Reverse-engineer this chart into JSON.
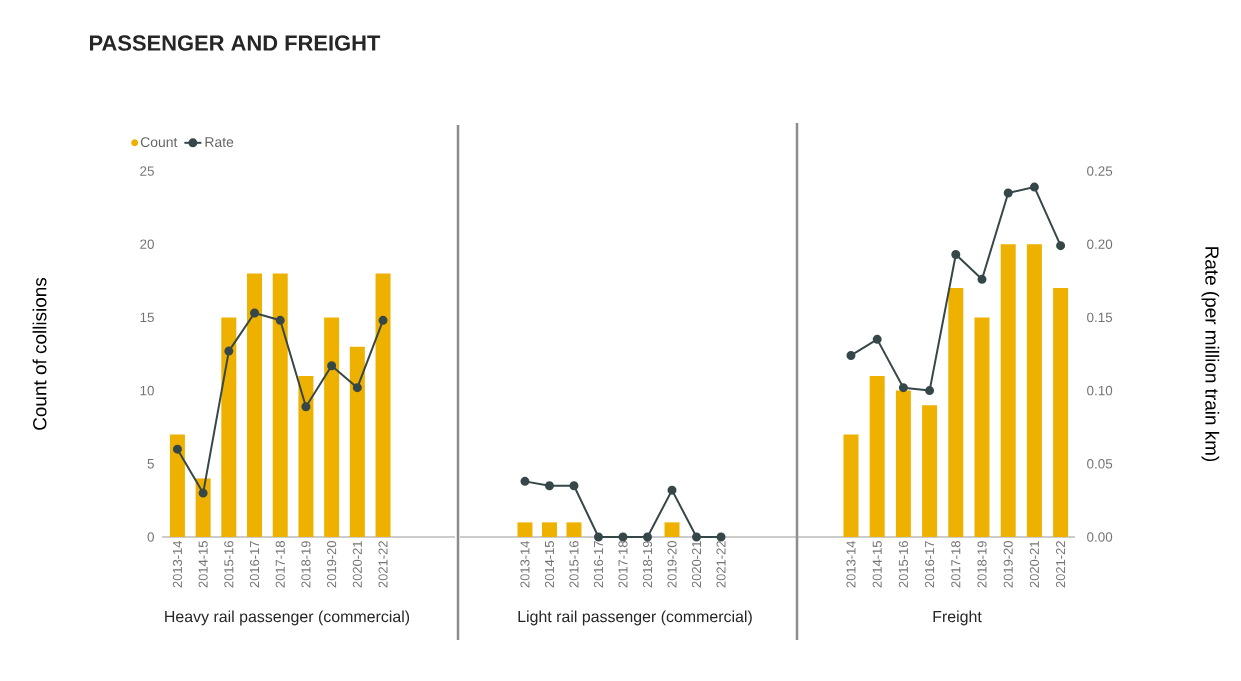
{
  "chart_data": [
    {
      "type": "bar",
      "title": "PASSENGER AND FREIGHT",
      "xlabel": "Heavy rail passenger (commercial)",
      "ylabel": "Count of collisions",
      "categories": [
        "2013-14",
        "2014-15",
        "2015-16",
        "2016-17",
        "2017-18",
        "2018-19",
        "2019-20",
        "2020-21",
        "2021-22"
      ],
      "series": [
        {
          "name": "Count",
          "color": "#efb100",
          "values": [
            7,
            4,
            15,
            18,
            18,
            11,
            15,
            13,
            18
          ]
        },
        {
          "name": "Rate",
          "type": "line",
          "axis": "y2",
          "color": "#36474a",
          "marker": "circle",
          "values": [
            0.06,
            0.03,
            0.127,
            0.153,
            0.148,
            0.089,
            0.117,
            0.102,
            0.148
          ]
        }
      ],
      "ylim": [
        0,
        25
      ],
      "yticks": [
        0,
        5,
        10,
        15,
        20,
        25
      ],
      "y2lim": [
        0,
        0.25
      ],
      "tick_labels": [
        "x",
        "y"
      ],
      "legend": "top left"
    },
    {
      "type": "bar",
      "xlabel": "Light rail passenger (commercial)",
      "categories": [
        "2013-14",
        "2014-15",
        "2015-16",
        "2016-17",
        "2017-18",
        "2018-19",
        "2019-20",
        "2020-21",
        "2021-22"
      ],
      "series": [
        {
          "color": "#efb100",
          "values": [
            1,
            1,
            1,
            0,
            0,
            0,
            1,
            0,
            0
          ]
        },
        {
          "type": "line",
          "axis": "y2",
          "color": "#36474a",
          "marker": "circle",
          "values": [
            0.038,
            0.035,
            0.035,
            0,
            0,
            0,
            0.032,
            0,
            0
          ]
        }
      ],
      "ylim": [
        0,
        25
      ],
      "yticks": [
        0,
        5,
        10,
        15,
        20,
        25
      ],
      "y2lim": [
        0,
        0.25
      ],
      "tick_labels": "x"
    },
    {
      "type": "bar",
      "xlabel": "Freight",
      "y2label": "Rate (per million train km)",
      "categories": [
        "2013-14",
        "2014-15",
        "2015-16",
        "2016-17",
        "2017-18",
        "2018-19",
        "2019-20",
        "2020-21",
        "2021-22"
      ],
      "series": [
        {
          "color": "#efb100",
          "values": [
            7,
            11,
            10,
            9,
            17,
            15,
            20,
            20,
            17
          ]
        },
        {
          "type": "line",
          "axis": "y2",
          "color": "#36474a",
          "marker": "circle",
          "values": [
            0.124,
            0.135,
            0.102,
            0.1,
            0.193,
            0.176,
            0.235,
            0.239,
            0.199
          ]
        }
      ],
      "ylim": [
        0,
        25
      ],
      "y2lim": [
        0,
        0.25
      ],
      "y2ticks": [
        {
          "value": 0,
          "label": "0.00"
        },
        {
          "value": 0.05,
          "label": "0.05"
        },
        {
          "value": 0.1,
          "label": "0.10"
        },
        {
          "value": 0.15,
          "label": "0.15"
        },
        {
          "value": 0.2,
          "label": "0.20"
        },
        {
          "value": 0.25,
          "label": "0.25"
        }
      ],
      "tick_labels": [
        "x",
        "y2"
      ]
    }
  ]
}
